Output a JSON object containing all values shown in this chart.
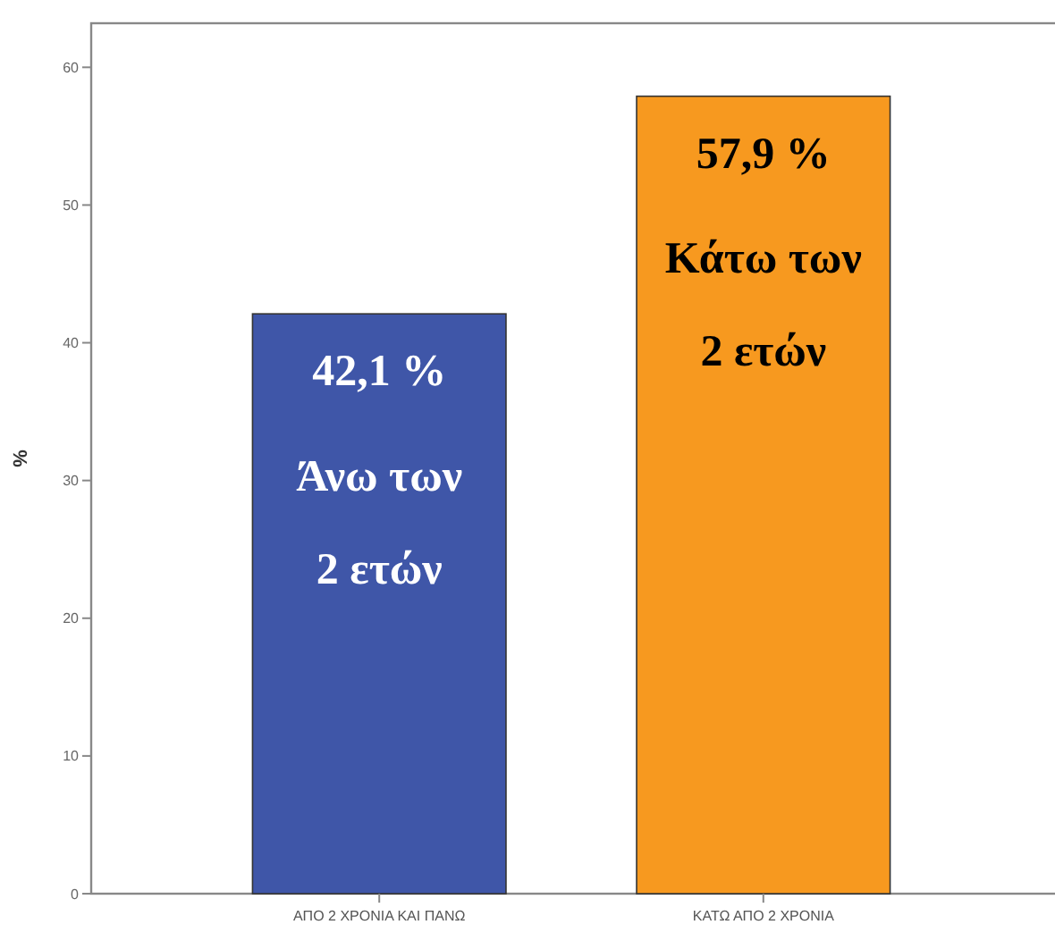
{
  "chart_data": {
    "type": "bar",
    "ylabel": "%",
    "categories": [
      "ΑΠΟ 2 ΧΡΟΝΙΑ ΚΑΙ ΠΑΝΩ",
      "ΚΑΤΩ ΑΠΟ 2 ΧΡΟΝΙΑ"
    ],
    "values": [
      42.1,
      57.9
    ],
    "colors": [
      "#3f56a8",
      "#f7991f"
    ],
    "value_labels": [
      "42,1 %",
      "57,9 %"
    ],
    "annotations": [
      "Άνω των\n2 ετών",
      "Κάτω των\n2 ετών"
    ],
    "ylim": [
      0,
      63.2
    ],
    "yticks": [
      0,
      10,
      20,
      30,
      40,
      50,
      60
    ],
    "grid": false
  }
}
